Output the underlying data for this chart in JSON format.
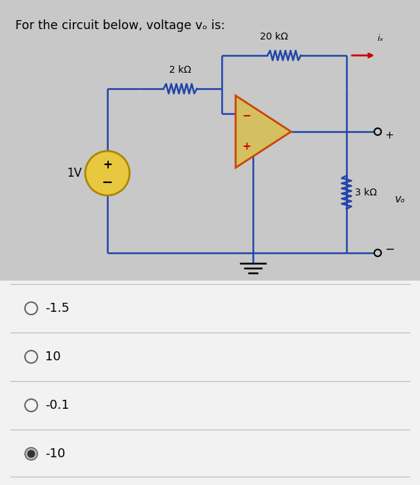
{
  "title": "For the circuit below, voltage vₒ is:",
  "title_fontsize": 12.5,
  "bg_color": "#c8c8c8",
  "circuit_bg": "#c8c8c8",
  "answer_bg": "#f0f0f0",
  "circuit_color": "#2244aa",
  "resistor_color": "#2244aa",
  "arrow_color": "#cc0000",
  "opamp_fill": "#d4c060",
  "opamp_edge": "#cc4400",
  "vsrc_fill": "#e8c840",
  "vsrc_edge": "#aa8800",
  "choices": [
    "-1.5",
    "10",
    "-0.1",
    "-10"
  ],
  "selected": 3,
  "choice_fontsize": 13,
  "labels": {
    "source": "1V",
    "r1": "2 kΩ",
    "r2": "20 kΩ",
    "r3": "3 kΩ",
    "ix": "iₓ",
    "vo": "vₒ"
  }
}
